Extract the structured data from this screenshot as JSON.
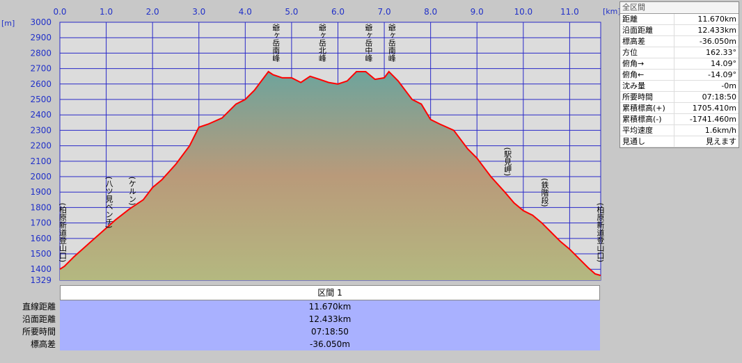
{
  "chart_data": {
    "type": "area",
    "x_unit": "[km]",
    "y_unit": "[m]",
    "xlim": [
      0,
      11.67
    ],
    "ylim": [
      1329,
      3000
    ],
    "x_ticks": [
      "0.0",
      "1.0",
      "2.0",
      "3.0",
      "4.0",
      "5.0",
      "6.0",
      "7.0",
      "8.0",
      "9.0",
      "10.0",
      "11.0"
    ],
    "y_ticks": [
      "3000",
      "2900",
      "2800",
      "2700",
      "2600",
      "2500",
      "2400",
      "2300",
      "2200",
      "2100",
      "2000",
      "1900",
      "1800",
      "1700",
      "1600",
      "1500",
      "1400",
      "1329"
    ],
    "series": [
      {
        "x": [
          0,
          0.1,
          0.3,
          0.6,
          0.9,
          1.2,
          1.5,
          1.8,
          2.0,
          2.2,
          2.5,
          2.8,
          3.0,
          3.2,
          3.5,
          3.8,
          4.0,
          4.2,
          4.5,
          4.6,
          4.8,
          5.0,
          5.2,
          5.4,
          5.6,
          5.8,
          6.0,
          6.2,
          6.4,
          6.6,
          6.8,
          7.0,
          7.1,
          7.3,
          7.6,
          7.8,
          8.0,
          8.2,
          8.5,
          8.8,
          9.0,
          9.3,
          9.6,
          9.8,
          10.0,
          10.2,
          10.4,
          10.6,
          10.8,
          11.0,
          11.2,
          11.4,
          11.55,
          11.67
        ],
        "y": [
          1400,
          1420,
          1480,
          1560,
          1640,
          1720,
          1790,
          1850,
          1930,
          1980,
          2080,
          2200,
          2320,
          2340,
          2380,
          2470,
          2500,
          2560,
          2680,
          2660,
          2640,
          2640,
          2610,
          2650,
          2630,
          2610,
          2600,
          2620,
          2680,
          2680,
          2630,
          2640,
          2680,
          2620,
          2500,
          2470,
          2370,
          2340,
          2300,
          2180,
          2120,
          2000,
          1900,
          1830,
          1780,
          1750,
          1700,
          1640,
          1580,
          1530,
          1470,
          1410,
          1370,
          1360
        ]
      }
    ],
    "annotations": [
      {
        "x": 0.0,
        "label": "(柏原新道登山口)",
        "top_y": 1840
      },
      {
        "x": 1.0,
        "label": "(八ツ見ベンチ)",
        "top_y": 2010
      },
      {
        "x": 1.5,
        "label": "(ケルン)",
        "top_y": 2010
      },
      {
        "x": 4.6,
        "label": "爺ヶ岳南峰",
        "top_y": 3000
      },
      {
        "x": 5.6,
        "label": "爺ヶ岳北峰",
        "top_y": 3000
      },
      {
        "x": 6.6,
        "label": "爺ヶ岳中峰",
        "top_y": 3000
      },
      {
        "x": 7.1,
        "label": "爺ヶ岳南峰",
        "top_y": 3000
      },
      {
        "x": 9.6,
        "label": "(駅見岬)",
        "top_y": 2200
      },
      {
        "x": 10.4,
        "label": "(鉄階段)",
        "top_y": 2000
      },
      {
        "x": 11.6,
        "label": "(柏原新道登山口)",
        "top_y": 1840
      }
    ]
  },
  "stats": {
    "title": "全区間",
    "rows": [
      {
        "k": "距離",
        "v": "11.670km"
      },
      {
        "k": "沿面距離",
        "v": "12.433km"
      },
      {
        "k": "標高差",
        "v": "-36.050m"
      },
      {
        "k": "方位",
        "v": "162.33°"
      },
      {
        "k": "俯角→",
        "v": "14.09°"
      },
      {
        "k": "俯角←",
        "v": "-14.09°"
      },
      {
        "k": "沈み量",
        "v": "-0m"
      },
      {
        "k": "所要時間",
        "v": "07:18:50"
      },
      {
        "k": "累積標高(+)",
        "v": "1705.410m"
      },
      {
        "k": "累積標高(-)",
        "v": "-1741.460m"
      },
      {
        "k": "平均速度",
        "v": "1.6km/h"
      },
      {
        "k": "見通し",
        "v": "見えます"
      }
    ]
  },
  "section": {
    "title": "区間 1",
    "labels": [
      "直線距離",
      "沿面距離",
      "所要時間",
      "標高差"
    ],
    "values": [
      "11.670km",
      "12.433km",
      "07:18:50",
      "-36.050m"
    ]
  },
  "colors": {
    "plot_bg": "#dcdcdc",
    "grid": "#2828c8",
    "line": "#ff0000",
    "area_top": "#6ea49c",
    "area_mid": "#b99a7a",
    "area_bottom": "#b4b880"
  }
}
